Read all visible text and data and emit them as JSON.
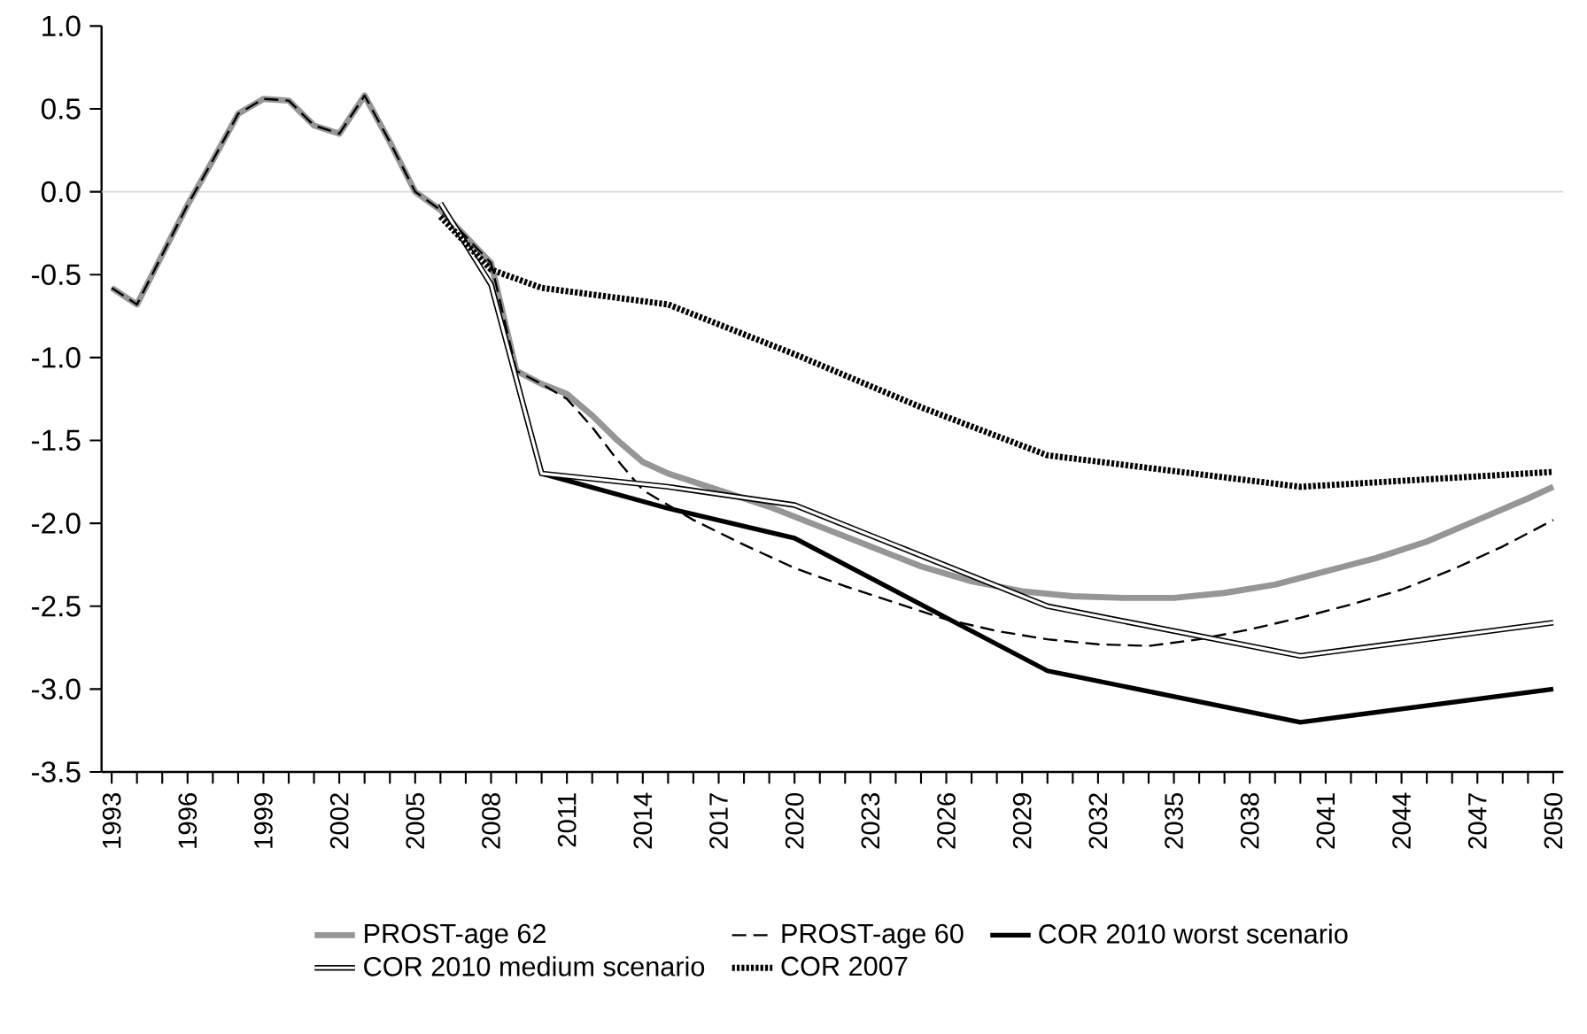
{
  "chart_data": {
    "type": "line",
    "xlim": [
      1992.6,
      2050.4
    ],
    "ylim": [
      -3.5,
      1.0
    ],
    "yticks": [
      {
        "value": -3.5,
        "label": "-3.5"
      },
      {
        "value": -3.0,
        "label": "-3.0"
      },
      {
        "value": -2.5,
        "label": "-2.5"
      },
      {
        "value": -2.0,
        "label": "-2.0"
      },
      {
        "value": -1.5,
        "label": "-1.5"
      },
      {
        "value": -1.0,
        "label": "-1.0"
      },
      {
        "value": -0.5,
        "label": "-0.5"
      },
      {
        "value": 0.0,
        "label": "0.0"
      },
      {
        "value": 0.5,
        "label": "0.5"
      },
      {
        "value": 1.0,
        "label": "1.0"
      }
    ],
    "xticks": [
      1993,
      {
        "value": 1994,
        "label": null
      },
      {
        "value": 1995,
        "label": null
      },
      1996,
      {
        "value": 1997,
        "label": null
      },
      {
        "value": 1998,
        "label": null
      },
      1999,
      {
        "value": 2000,
        "label": null
      },
      {
        "value": 2001,
        "label": null
      },
      2002,
      {
        "value": 2003,
        "label": null
      },
      {
        "value": 2004,
        "label": null
      },
      2005,
      {
        "value": 2006,
        "label": null
      },
      {
        "value": 2007,
        "label": null
      },
      2008,
      {
        "value": 2009,
        "label": null
      },
      {
        "value": 2010,
        "label": null
      },
      2011,
      {
        "value": 2012,
        "label": null
      },
      {
        "value": 2013,
        "label": null
      },
      2014,
      {
        "value": 2015,
        "label": null
      },
      {
        "value": 2016,
        "label": null
      },
      2017,
      {
        "value": 2018,
        "label": null
      },
      {
        "value": 2019,
        "label": null
      },
      2020,
      {
        "value": 2021,
        "label": null
      },
      {
        "value": 2022,
        "label": null
      },
      2023,
      {
        "value": 2024,
        "label": null
      },
      {
        "value": 2025,
        "label": null
      },
      2026,
      {
        "value": 2027,
        "label": null
      },
      {
        "value": 2028,
        "label": null
      },
      2029,
      {
        "value": 2030,
        "label": null
      },
      {
        "value": 2031,
        "label": null
      },
      2032,
      {
        "value": 2033,
        "label": null
      },
      {
        "value": 2034,
        "label": null
      },
      2035,
      {
        "value": 2036,
        "label": null
      },
      {
        "value": 2037,
        "label": null
      },
      2038,
      {
        "value": 2039,
        "label": null
      },
      {
        "value": 2040,
        "label": null
      },
      2041,
      {
        "value": 2042,
        "label": null
      },
      {
        "value": 2043,
        "label": null
      },
      2044,
      {
        "value": 2045,
        "label": null
      },
      {
        "value": 2046,
        "label": null
      },
      2047,
      {
        "value": 2048,
        "label": null
      },
      {
        "value": 2049,
        "label": null
      },
      2050
    ],
    "grid": false,
    "legend": "bottom",
    "marker": "none",
    "ref_lines": [
      {
        "axis": "y",
        "value": 0,
        "color": "#d9d9d9"
      }
    ],
    "series": [
      {
        "name": "PROST-age 62",
        "color": "#969696",
        "line_style": "solid",
        "x": [
          1993,
          1994,
          1995,
          1996,
          1997,
          1998,
          1999,
          2000,
          2001,
          2002,
          2003,
          2004,
          2005,
          2006,
          2007,
          2008,
          2009,
          2010,
          2011,
          2012,
          2013,
          2014,
          2015,
          2017,
          2019,
          2021,
          2023,
          2025,
          2027,
          2029,
          2031,
          2033,
          2035,
          2037,
          2039,
          2041,
          2043,
          2045,
          2047,
          2049,
          2050
        ],
        "values": [
          -0.58,
          -0.68,
          -0.38,
          -0.08,
          0.19,
          0.47,
          0.56,
          0.55,
          0.4,
          0.35,
          0.58,
          0.3,
          0.0,
          -0.11,
          -0.27,
          -0.43,
          -1.08,
          -1.16,
          -1.22,
          -1.35,
          -1.5,
          -1.63,
          -1.7,
          -1.8,
          -1.9,
          -2.02,
          -2.14,
          -2.26,
          -2.35,
          -2.41,
          -2.44,
          -2.45,
          -2.45,
          -2.42,
          -2.37,
          -2.29,
          -2.21,
          -2.11,
          -1.98,
          -1.85,
          -1.78
        ]
      },
      {
        "name": "PROST-age 60",
        "color": "#000000",
        "line_style": "dashed",
        "x": [
          1993,
          1994,
          1995,
          1996,
          1997,
          1998,
          1999,
          2000,
          2001,
          2002,
          2003,
          2004,
          2005,
          2006,
          2007,
          2008,
          2009,
          2010,
          2011,
          2012,
          2013,
          2014,
          2016,
          2018,
          2020,
          2022,
          2024,
          2026,
          2028,
          2030,
          2032,
          2034,
          2036,
          2038,
          2040,
          2042,
          2044,
          2046,
          2048,
          2050
        ],
        "values": [
          -0.58,
          -0.68,
          -0.38,
          -0.08,
          0.19,
          0.47,
          0.56,
          0.55,
          0.4,
          0.35,
          0.58,
          0.3,
          0.0,
          -0.11,
          -0.27,
          -0.43,
          -1.08,
          -1.16,
          -1.25,
          -1.42,
          -1.62,
          -1.8,
          -1.98,
          -2.13,
          -2.27,
          -2.38,
          -2.48,
          -2.58,
          -2.65,
          -2.7,
          -2.73,
          -2.74,
          -2.7,
          -2.64,
          -2.57,
          -2.49,
          -2.4,
          -2.28,
          -2.14,
          -1.98
        ]
      },
      {
        "name": "COR 2010 worst scenario",
        "color": "#000000",
        "line_style": "solid",
        "x": [
          2006,
          2008,
          2010,
          2015,
          2020,
          2030,
          2040,
          2050
        ],
        "values": [
          -0.07,
          -0.56,
          -1.7,
          -1.91,
          -2.09,
          -2.89,
          -3.2,
          -3.0
        ]
      },
      {
        "name": "COR 2010 medium scenario",
        "color": "#000000",
        "line_style": "solid",
        "x": [
          2006,
          2008,
          2010,
          2015,
          2020,
          2030,
          2040,
          2050
        ],
        "values": [
          -0.07,
          -0.56,
          -1.7,
          -1.78,
          -1.89,
          -2.5,
          -2.8,
          -2.6
        ]
      },
      {
        "name": "COR 2007",
        "color": "#000000",
        "line_style": "dotted",
        "x": [
          2006,
          2008,
          2010,
          2015,
          2020,
          2025,
          2030,
          2040,
          2050
        ],
        "values": [
          -0.15,
          -0.47,
          -0.58,
          -0.68,
          -0.98,
          -1.3,
          -1.59,
          -1.78,
          -1.69
        ]
      }
    ]
  }
}
